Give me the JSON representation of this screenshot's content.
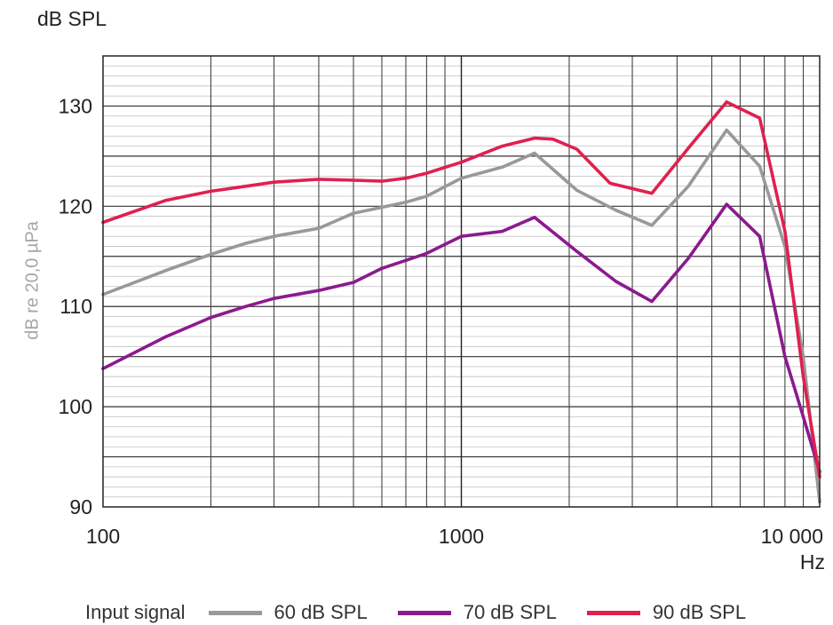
{
  "chart_data": {
    "type": "line",
    "y_unit_label": "dB SPL",
    "ylabel": "dB re 20,0 µPa",
    "xlabel": "Hz",
    "x_scale": "log",
    "xlim": [
      100,
      10000
    ],
    "ylim": [
      90,
      135
    ],
    "x_ticks": [
      {
        "value": 100,
        "label": "100"
      },
      {
        "value": 1000,
        "label": "1000"
      },
      {
        "value": 10000,
        "label": "10 000"
      }
    ],
    "y_ticks": [
      {
        "value": 90,
        "label": "90"
      },
      {
        "value": 100,
        "label": "100"
      },
      {
        "value": 110,
        "label": "110"
      },
      {
        "value": 120,
        "label": "120"
      },
      {
        "value": 130,
        "label": "130"
      }
    ],
    "grid": true,
    "legend": {
      "title": "Input signal",
      "placement": "bottom"
    },
    "series": [
      {
        "name": "60 dB SPL",
        "color": "#999999",
        "points": [
          [
            100,
            111.2
          ],
          [
            150,
            113.6
          ],
          [
            200,
            115.2
          ],
          [
            250,
            116.3
          ],
          [
            300,
            117.0
          ],
          [
            400,
            117.8
          ],
          [
            500,
            119.3
          ],
          [
            600,
            119.9
          ],
          [
            700,
            120.4
          ],
          [
            800,
            121.0
          ],
          [
            1000,
            122.8
          ],
          [
            1300,
            123.9
          ],
          [
            1600,
            125.3
          ],
          [
            2100,
            121.6
          ],
          [
            2700,
            119.6
          ],
          [
            3400,
            118.1
          ],
          [
            4300,
            122.0
          ],
          [
            5500,
            127.6
          ],
          [
            6800,
            124.0
          ],
          [
            8000,
            116.0
          ],
          [
            9000,
            105.0
          ],
          [
            10000,
            90.5
          ]
        ]
      },
      {
        "name": "70 dB SPL",
        "color": "#8b1a8e",
        "points": [
          [
            100,
            103.8
          ],
          [
            150,
            107.0
          ],
          [
            200,
            108.9
          ],
          [
            250,
            110.0
          ],
          [
            300,
            110.8
          ],
          [
            400,
            111.6
          ],
          [
            500,
            112.4
          ],
          [
            600,
            113.8
          ],
          [
            700,
            114.6
          ],
          [
            800,
            115.3
          ],
          [
            1000,
            117.0
          ],
          [
            1300,
            117.5
          ],
          [
            1600,
            118.9
          ],
          [
            2100,
            115.5
          ],
          [
            2700,
            112.5
          ],
          [
            3400,
            110.5
          ],
          [
            4300,
            114.8
          ],
          [
            5500,
            120.2
          ],
          [
            6800,
            117.0
          ],
          [
            8000,
            105.0
          ],
          [
            9000,
            99.0
          ],
          [
            10000,
            93.5
          ]
        ]
      },
      {
        "name": "90 dB SPL",
        "color": "#e0204f",
        "points": [
          [
            100,
            118.4
          ],
          [
            150,
            120.6
          ],
          [
            200,
            121.5
          ],
          [
            250,
            122.0
          ],
          [
            300,
            122.4
          ],
          [
            400,
            122.7
          ],
          [
            500,
            122.6
          ],
          [
            600,
            122.5
          ],
          [
            700,
            122.8
          ],
          [
            800,
            123.3
          ],
          [
            1000,
            124.4
          ],
          [
            1300,
            126.0
          ],
          [
            1600,
            126.8
          ],
          [
            1800,
            126.7
          ],
          [
            2100,
            125.7
          ],
          [
            2600,
            122.3
          ],
          [
            3400,
            121.3
          ],
          [
            4300,
            125.8
          ],
          [
            5500,
            130.4
          ],
          [
            6800,
            128.8
          ],
          [
            8000,
            117.5
          ],
          [
            9000,
            103.0
          ],
          [
            10000,
            93.0
          ]
        ]
      }
    ]
  }
}
